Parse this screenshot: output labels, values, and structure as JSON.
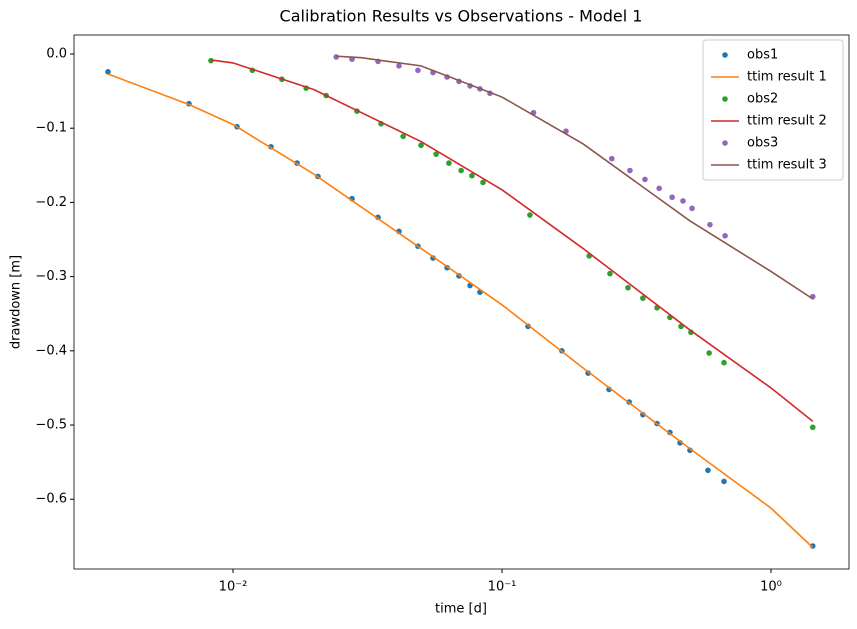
{
  "chart_data": {
    "type": "line",
    "title": "Calibration Results vs Observations - Model 1",
    "x_label": "time [d]",
    "y_label": "drawdown [m]",
    "x_log": true,
    "grid": false,
    "legend": "upper right",
    "xlim": [
      0.002564,
      1.95
    ],
    "ylim": [
      -0.694,
      0.0256
    ],
    "xticks": [
      {
        "value": 0.01,
        "label": "10⁻²"
      },
      {
        "value": 0.1,
        "label": "10⁻¹"
      },
      {
        "value": 1,
        "label": "10⁰"
      }
    ],
    "yticks": [
      {
        "value": 0,
        "label": "0.0"
      },
      {
        "value": -0.1,
        "label": "−0.1"
      },
      {
        "value": -0.2,
        "label": "−0.2"
      },
      {
        "value": -0.3,
        "label": "−0.3"
      },
      {
        "value": -0.4,
        "label": "−0.4"
      },
      {
        "value": -0.5,
        "label": "−0.5"
      },
      {
        "value": -0.6,
        "label": "−0.6"
      }
    ],
    "series": [
      {
        "name": "obs1",
        "type": "scatter",
        "color": "#1f77b4",
        "x": [
          0.00343,
          0.00686,
          0.01035,
          0.01384,
          0.0173,
          0.0207,
          0.0277,
          0.0346,
          0.0414,
          0.0487,
          0.0554,
          0.0625,
          0.0692,
          0.0761,
          0.0828,
          0.125,
          0.167,
          0.209,
          0.25,
          0.297,
          0.334,
          0.377,
          0.421,
          0.459,
          0.5,
          0.583,
          0.669,
          1.43
        ],
        "values": [
          -0.024,
          -0.067,
          -0.098,
          -0.125,
          -0.147,
          -0.165,
          -0.195,
          -0.22,
          -0.239,
          -0.259,
          -0.275,
          -0.288,
          -0.299,
          -0.312,
          -0.321,
          -0.367,
          -0.4,
          -0.43,
          -0.452,
          -0.469,
          -0.486,
          -0.498,
          -0.51,
          -0.524,
          -0.534,
          -0.561,
          -0.576,
          -0.663
        ]
      },
      {
        "name": "ttim result 1",
        "type": "line",
        "color": "#ff7f0e",
        "x": [
          0.00343,
          0.00686,
          0.01,
          0.02,
          0.05,
          0.1,
          0.2,
          0.5,
          1.0,
          1.43
        ],
        "values": [
          -0.027,
          -0.068,
          -0.095,
          -0.162,
          -0.262,
          -0.338,
          -0.423,
          -0.532,
          -0.612,
          -0.665
        ]
      },
      {
        "name": "obs2",
        "type": "scatter",
        "color": "#2ca02c",
        "x": [
          0.00828,
          0.0118,
          0.0152,
          0.0187,
          0.0222,
          0.0289,
          0.0355,
          0.0429,
          0.05,
          0.0569,
          0.0635,
          0.0705,
          0.0773,
          0.085,
          0.127,
          0.211,
          0.252,
          0.294,
          0.334,
          0.377,
          0.421,
          0.463,
          0.504,
          0.589,
          0.669,
          1.43
        ],
        "values": [
          -0.009,
          -0.022,
          -0.034,
          -0.046,
          -0.056,
          -0.077,
          -0.094,
          -0.111,
          -0.123,
          -0.135,
          -0.147,
          -0.157,
          -0.164,
          -0.173,
          -0.217,
          -0.272,
          -0.296,
          -0.315,
          -0.329,
          -0.342,
          -0.355,
          -0.367,
          -0.375,
          -0.403,
          -0.416,
          -0.503
        ]
      },
      {
        "name": "ttim result 2",
        "type": "line",
        "color": "#d62728",
        "x": [
          0.00828,
          0.01,
          0.02,
          0.05,
          0.1,
          0.2,
          0.5,
          1.0,
          1.43
        ],
        "values": [
          -0.008,
          -0.012,
          -0.048,
          -0.118,
          -0.183,
          -0.262,
          -0.372,
          -0.45,
          -0.495
        ]
      },
      {
        "name": "obs3",
        "type": "scatter",
        "color": "#9467bd",
        "x": [
          0.0242,
          0.0277,
          0.0346,
          0.0414,
          0.0487,
          0.0554,
          0.0625,
          0.0692,
          0.0761,
          0.0828,
          0.0902,
          0.131,
          0.173,
          0.256,
          0.299,
          0.34,
          0.384,
          0.429,
          0.471,
          0.509,
          0.593,
          0.675,
          1.43
        ],
        "values": [
          -0.004,
          -0.007,
          -0.01,
          -0.016,
          -0.022,
          -0.025,
          -0.031,
          -0.037,
          -0.043,
          -0.047,
          -0.053,
          -0.079,
          -0.104,
          -0.141,
          -0.157,
          -0.169,
          -0.181,
          -0.193,
          -0.198,
          -0.208,
          -0.23,
          -0.245,
          -0.327
        ]
      },
      {
        "name": "ttim result 3",
        "type": "line",
        "color": "#8c564b",
        "x": [
          0.0242,
          0.03,
          0.05,
          0.1,
          0.2,
          0.5,
          1.0,
          1.43
        ],
        "values": [
          -0.003,
          -0.005,
          -0.016,
          -0.058,
          -0.121,
          -0.225,
          -0.293,
          -0.33
        ]
      }
    ]
  }
}
